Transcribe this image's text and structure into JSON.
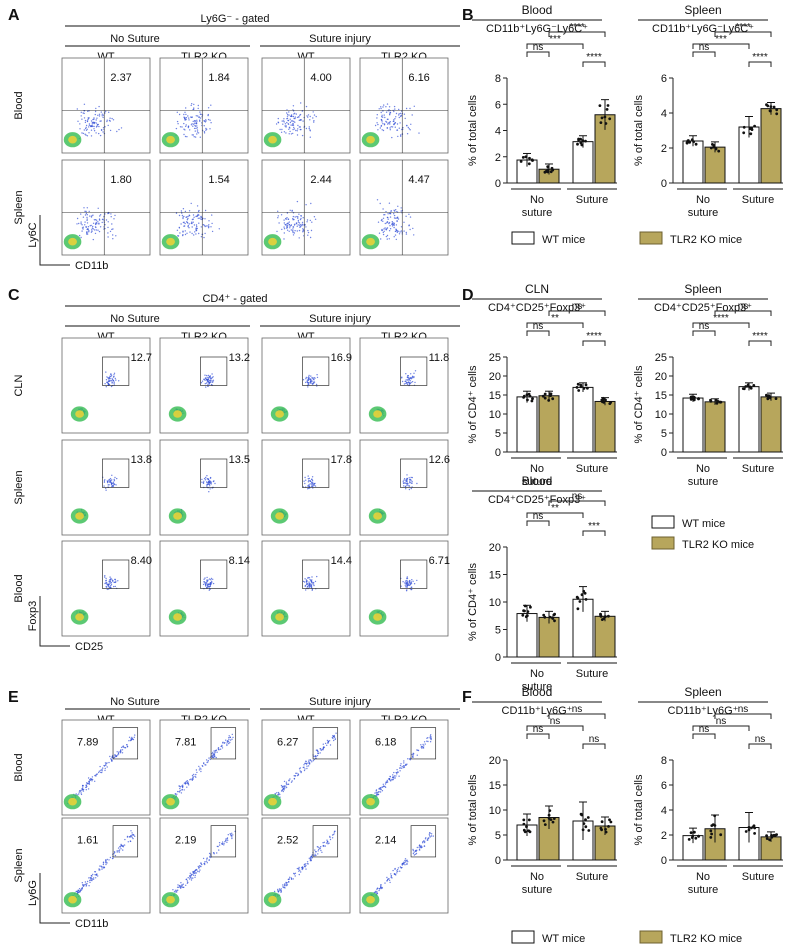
{
  "colors": {
    "wt": "#ffffff",
    "ko": "#b7a65c",
    "koEdge": "#6d6030",
    "flow": "#2f4bd6"
  },
  "labels": {
    "wt_mice": "WT mice",
    "ko_mice": "TLR2 KO mice",
    "pct_total": "% of total cells",
    "pct_cd4": "% of CD4⁺ cells",
    "no_suture": "No suture",
    "no_suture_line1": "No",
    "no_suture_line2": "suture",
    "suture": "Suture",
    "No_Suture": "No Suture",
    "suture_injury": "Suture injury",
    "wt": "WT",
    "tlr2ko": "TLR2 KO"
  },
  "panelA": {
    "letter": "A",
    "gate_title": "Ly6G⁻ - gated",
    "ylab": "Ly6C",
    "xlab": "CD11b",
    "rows": [
      "Blood",
      "Spleen"
    ],
    "values": [
      [
        "2.37",
        "1.84",
        "4.00",
        "6.16"
      ],
      [
        "1.80",
        "1.54",
        "2.44",
        "4.47"
      ]
    ]
  },
  "panelC": {
    "letter": "C",
    "gate_title": "CD4⁺ - gated",
    "ylab": "Foxp3",
    "xlab": "CD25",
    "rows": [
      "CLN",
      "Spleen",
      "Blood"
    ],
    "values": [
      [
        "12.7",
        "13.2",
        "16.9",
        "11.8"
      ],
      [
        "13.8",
        "13.5",
        "17.8",
        "12.6"
      ],
      [
        "8.40",
        "8.14",
        "14.4",
        "6.71"
      ]
    ]
  },
  "panelE": {
    "letter": "E",
    "ylab": "Ly6G",
    "xlab": "CD11b",
    "rows": [
      "Blood",
      "Spleen"
    ],
    "values": [
      [
        "7.89",
        "7.81",
        "6.27",
        "6.18"
      ],
      [
        "1.61",
        "2.19",
        "2.52",
        "2.14"
      ]
    ]
  },
  "letters": {
    "B": "B",
    "D": "D",
    "F": "F"
  },
  "chart_data": [
    {
      "id": "B1",
      "type": "bar",
      "panel": "B",
      "tissue": "Blood",
      "subtitle": "CD11b⁺Ly6G⁻Ly6C⁺",
      "ylabel": "% of total cells",
      "ylim": [
        0,
        8
      ],
      "yticks": [
        0,
        2,
        4,
        6,
        8
      ],
      "categories": [
        "No suture",
        "Suture"
      ],
      "series": [
        {
          "name": "WT mice",
          "values": [
            1.75,
            3.15
          ],
          "sd": [
            0.5,
            0.45
          ]
        },
        {
          "name": "TLR2 KO mice",
          "values": [
            1.05,
            5.2
          ],
          "sd": [
            0.4,
            1.15
          ]
        }
      ],
      "comparisons": [
        {
          "label": "ns",
          "pair": "WT-NS vs KO-NS"
        },
        {
          "label": "***",
          "pair": "WT-NS vs WT-S"
        },
        {
          "label": "****",
          "pair": "WT-S vs KO-S"
        },
        {
          "label": "****",
          "pair": "KO-NS vs KO-S"
        }
      ]
    },
    {
      "id": "B2",
      "type": "bar",
      "panel": "B",
      "tissue": "Spleen",
      "subtitle": "CD11b⁺Ly6G⁻Ly6C⁺",
      "ylabel": "% of total cells",
      "ylim": [
        0,
        6
      ],
      "yticks": [
        0,
        2,
        4,
        6
      ],
      "categories": [
        "No suture",
        "Suture"
      ],
      "series": [
        {
          "name": "WT mice",
          "values": [
            2.4,
            3.2
          ],
          "sd": [
            0.3,
            0.6
          ]
        },
        {
          "name": "TLR2 KO mice",
          "values": [
            2.05,
            4.25
          ],
          "sd": [
            0.3,
            0.35
          ]
        }
      ],
      "comparisons": [
        {
          "label": "ns",
          "pair": "WT-NS vs KO-NS"
        },
        {
          "label": "***",
          "pair": "WT-NS vs WT-S"
        },
        {
          "label": "****",
          "pair": "WT-S vs KO-S"
        },
        {
          "label": "****",
          "pair": "KO-NS vs KO-S"
        }
      ]
    },
    {
      "id": "D1",
      "type": "bar",
      "panel": "D",
      "tissue": "CLN",
      "subtitle": "CD4⁺CD25⁺Foxp3⁺",
      "ylabel": "% of CD4⁺ cells",
      "ylim": [
        0,
        25
      ],
      "yticks": [
        0,
        5,
        10,
        15,
        20,
        25
      ],
      "categories": [
        "No suture",
        "Suture"
      ],
      "series": [
        {
          "name": "WT mice",
          "values": [
            14.5,
            17.0
          ],
          "sd": [
            1.5,
            1.2
          ]
        },
        {
          "name": "TLR2 KO mice",
          "values": [
            14.8,
            13.3
          ],
          "sd": [
            1.2,
            1.0
          ]
        }
      ],
      "comparisons": [
        {
          "label": "ns",
          "pair": "WT-NS vs KO-NS"
        },
        {
          "label": "**",
          "pair": "WT-NS vs WT-S"
        },
        {
          "label": "****",
          "pair": "WT-S vs KO-S"
        },
        {
          "label": "ns",
          "pair": "KO-NS vs KO-S"
        }
      ]
    },
    {
      "id": "D2",
      "type": "bar",
      "panel": "D",
      "tissue": "Spleen",
      "subtitle": "CD4⁺CD25⁺Foxp3⁺",
      "ylabel": "% of CD4⁺ cells",
      "ylim": [
        0,
        25
      ],
      "yticks": [
        0,
        5,
        10,
        15,
        20,
        25
      ],
      "categories": [
        "No suture",
        "Suture"
      ],
      "series": [
        {
          "name": "WT mice",
          "values": [
            14.2,
            17.2
          ],
          "sd": [
            1.0,
            1.0
          ]
        },
        {
          "name": "TLR2 KO mice",
          "values": [
            13.2,
            14.5
          ],
          "sd": [
            0.8,
            1.0
          ]
        }
      ],
      "comparisons": [
        {
          "label": "ns",
          "pair": "WT-NS vs KO-NS"
        },
        {
          "label": "****",
          "pair": "WT-NS vs WT-S"
        },
        {
          "label": "****",
          "pair": "WT-S vs KO-S"
        },
        {
          "label": "ns",
          "pair": "KO-NS vs KO-S"
        }
      ]
    },
    {
      "id": "D3",
      "type": "bar",
      "panel": "D",
      "tissue": "Blood",
      "subtitle": "CD4⁺CD25⁺Foxp3⁺",
      "ylabel": "% of CD4⁺ cells",
      "ylim": [
        0,
        20
      ],
      "yticks": [
        0,
        5,
        10,
        15,
        20
      ],
      "categories": [
        "No suture",
        "Suture"
      ],
      "series": [
        {
          "name": "WT mice",
          "values": [
            7.9,
            10.5
          ],
          "sd": [
            1.5,
            2.3
          ]
        },
        {
          "name": "TLR2 KO mice",
          "values": [
            7.2,
            7.4
          ],
          "sd": [
            1.1,
            0.9
          ]
        }
      ],
      "comparisons": [
        {
          "label": "ns",
          "pair": "WT-NS vs KO-NS"
        },
        {
          "label": "**",
          "pair": "WT-NS vs WT-S"
        },
        {
          "label": "***",
          "pair": "WT-S vs KO-S"
        },
        {
          "label": "ns",
          "pair": "KO-NS vs KO-S"
        }
      ]
    },
    {
      "id": "F1",
      "type": "bar",
      "panel": "F",
      "tissue": "Blood",
      "subtitle": "CD11b⁺Ly6G⁺",
      "ylabel": "% of total cells",
      "ylim": [
        0,
        20
      ],
      "yticks": [
        0,
        5,
        10,
        15,
        20
      ],
      "categories": [
        "No suture",
        "Suture"
      ],
      "series": [
        {
          "name": "WT mice",
          "values": [
            7.0,
            7.8
          ],
          "sd": [
            2.2,
            3.8
          ]
        },
        {
          "name": "TLR2 KO mice",
          "values": [
            8.5,
            6.8
          ],
          "sd": [
            2.3,
            1.8
          ]
        }
      ],
      "comparisons": [
        {
          "label": "ns",
          "pair": "WT-NS vs KO-NS"
        },
        {
          "label": "ns",
          "pair": "WT-NS vs WT-S"
        },
        {
          "label": "ns",
          "pair": "WT-S vs KO-S"
        },
        {
          "label": "ns",
          "pair": "KO-NS vs KO-S"
        }
      ]
    },
    {
      "id": "F2",
      "type": "bar",
      "panel": "F",
      "tissue": "Spleen",
      "subtitle": "CD11b⁺Ly6G⁺",
      "ylabel": "% of total cells",
      "ylim": [
        0,
        8
      ],
      "yticks": [
        0,
        2,
        4,
        6,
        8
      ],
      "categories": [
        "No suture",
        "Suture"
      ],
      "series": [
        {
          "name": "WT mice",
          "values": [
            1.95,
            2.6
          ],
          "sd": [
            0.6,
            1.2
          ]
        },
        {
          "name": "TLR2 KO mice",
          "values": [
            2.5,
            1.85
          ],
          "sd": [
            1.1,
            0.4
          ]
        }
      ],
      "comparisons": [
        {
          "label": "ns",
          "pair": "WT-NS vs KO-NS"
        },
        {
          "label": "ns",
          "pair": "WT-NS vs WT-S"
        },
        {
          "label": "ns",
          "pair": "WT-S vs KO-S"
        },
        {
          "label": "ns",
          "pair": "KO-NS vs KO-S"
        }
      ]
    }
  ]
}
